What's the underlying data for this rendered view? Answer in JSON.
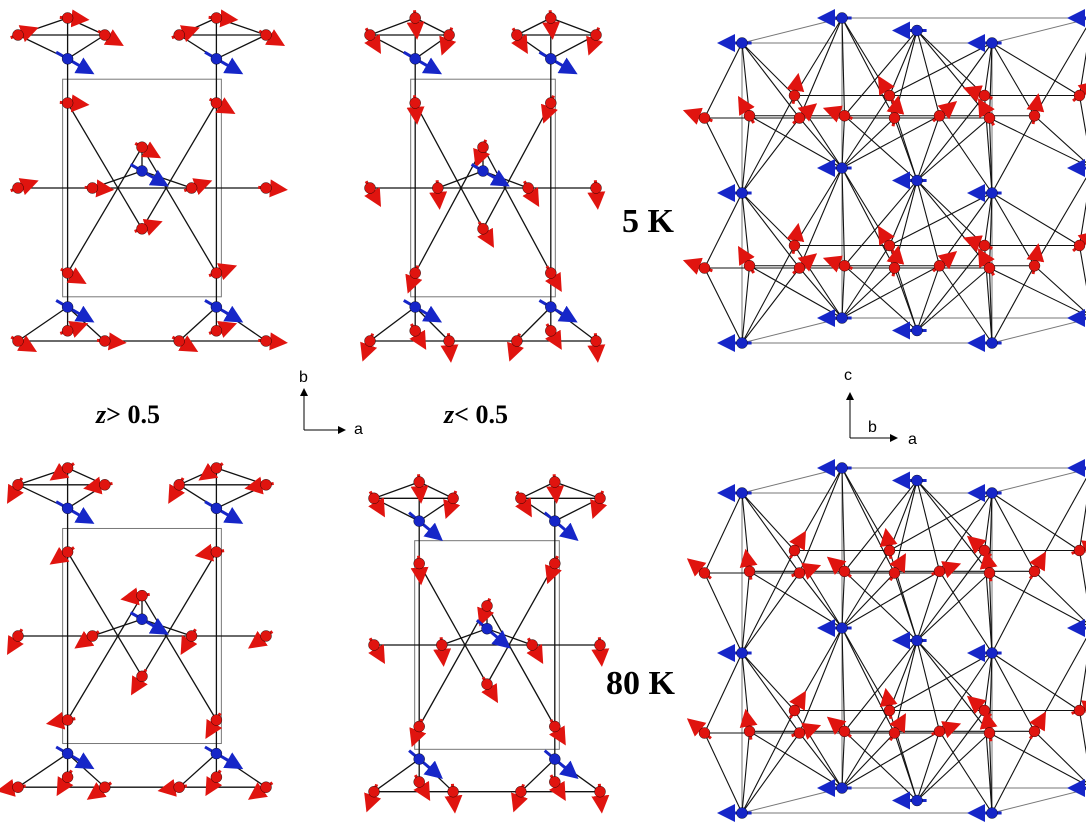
{
  "labels": {
    "temp_low": "5 K",
    "temp_high": "80 K",
    "z_upper": "> 0.5",
    "z_lower": "< 0.5",
    "z_var": "z"
  },
  "axes_2d": {
    "vertical": "b",
    "horizontal": "a"
  },
  "axes_3d": {
    "vertical": "c",
    "depth": "b",
    "horizontal": "a"
  },
  "colors": {
    "site_a": "#e0140f",
    "site_b": "#1626c8",
    "bond": "#111111",
    "cell": "#777777"
  }
}
